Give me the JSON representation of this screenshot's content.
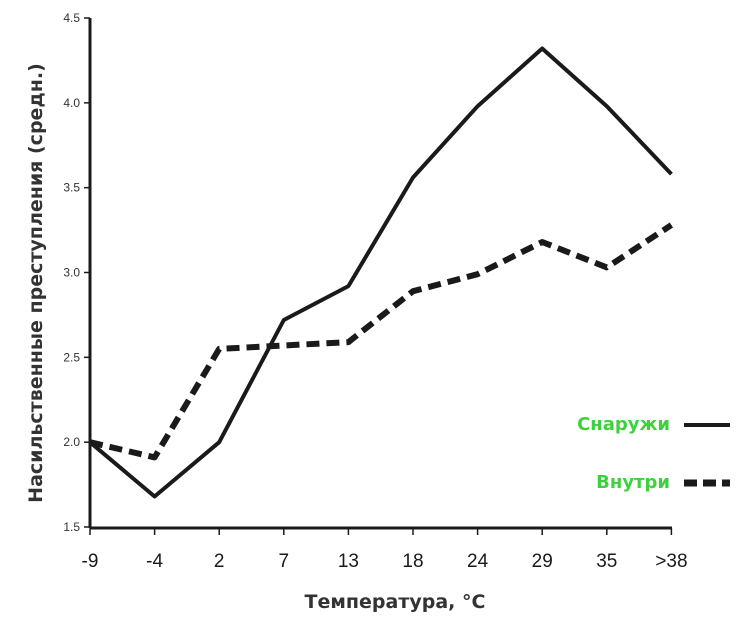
{
  "chart_data": {
    "type": "line",
    "title": "",
    "xlabel": "Температура, °C",
    "ylabel": "Насильственные преступления (средн.)",
    "categories": [
      "-9",
      "-4",
      "2",
      "7",
      "13",
      "18",
      "24",
      "29",
      "35",
      ">38"
    ],
    "yticks": [
      "1.5",
      "2.0",
      "2.5",
      "3.0",
      "3.5",
      "4.0",
      "4.5"
    ],
    "ylim": [
      1.5,
      4.5
    ],
    "grid": false,
    "legend_placement": "right",
    "series": [
      {
        "name": "Снаружи",
        "style": "solid",
        "values": [
          2.0,
          1.68,
          2.0,
          2.72,
          2.92,
          3.56,
          3.98,
          4.32,
          3.98,
          3.58
        ]
      },
      {
        "name": "Внутри",
        "style": "dashed",
        "values": [
          2.0,
          1.91,
          2.55,
          2.57,
          2.59,
          2.89,
          2.99,
          3.18,
          3.03,
          3.28
        ]
      }
    ],
    "colors": {
      "line": "#1a1a1a",
      "legend_text": "#3dd13d",
      "axis": "#1a1a1a"
    }
  }
}
